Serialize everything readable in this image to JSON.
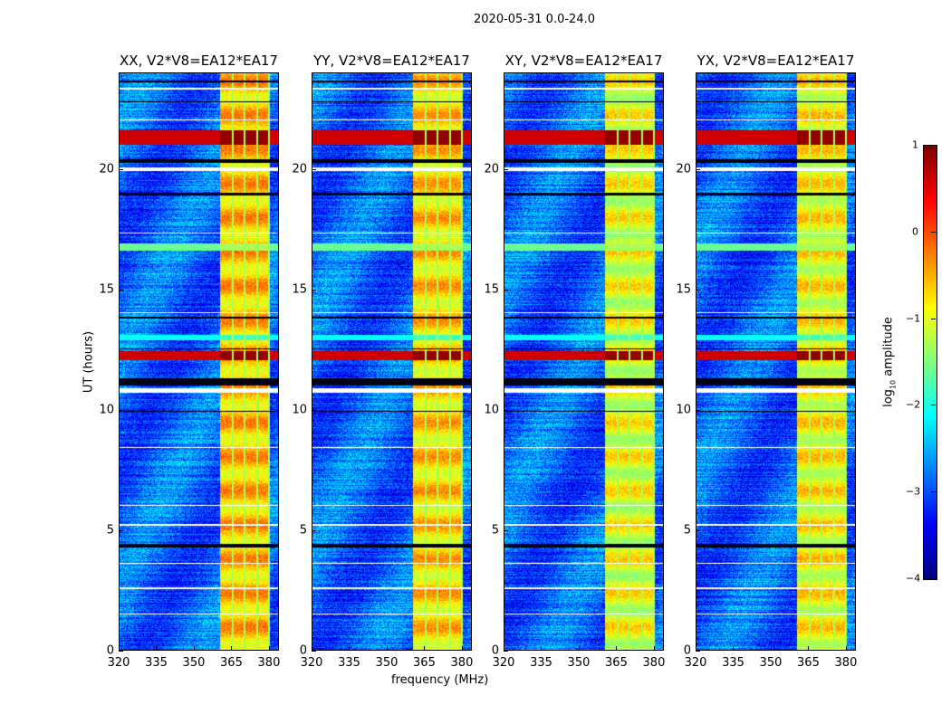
{
  "suptitle": "2020-05-31 0.0-24.0",
  "chart_data": {
    "type": "heatmap",
    "title": "2020-05-31 0.0-24.0",
    "xlabel": "frequency (MHz)",
    "ylabel": "UT (hours)",
    "xlim": [
      320,
      384
    ],
    "ylim": [
      0,
      24
    ],
    "xticks": [
      "320",
      "335",
      "350",
      "365",
      "380"
    ],
    "xtick_values": [
      320,
      335,
      350,
      365,
      380
    ],
    "yticks": [
      "0",
      "5",
      "10",
      "15",
      "20"
    ],
    "ytick_values": [
      0,
      5,
      10,
      15,
      20
    ],
    "colormap": "jet",
    "colorbar": {
      "label_prefix": "log",
      "label_sub": "10",
      "label_suffix": " amplitude",
      "range": [
        -4,
        1
      ],
      "ticks": [
        "1",
        "0",
        "−1",
        "−2",
        "−3",
        "−4"
      ],
      "tick_values": [
        1,
        0,
        -1,
        -2,
        -3,
        -4
      ]
    },
    "panels": [
      {
        "title": "XX, V2*V8=EA12*EA17",
        "band_offset": 0,
        "band_level": -0.6
      },
      {
        "title": "YY, V2*V8=EA12*EA17",
        "band_offset": 0,
        "band_level": -0.7
      },
      {
        "title": "XY, V2*V8=EA12*EA17",
        "band_offset": 0,
        "band_level": -1.0
      },
      {
        "title": "YX, V2*V8=EA12*EA17",
        "band_offset": 0,
        "band_level": -0.9
      }
    ],
    "background_level": -2.9,
    "rfi_band_mhz": [
      360.5,
      380
    ],
    "channel_edges_mhz": [
      365.5,
      370.3,
      375.2,
      380
    ],
    "strong_rows_hours": [
      [
        21.0,
        21.6,
        0.9
      ],
      [
        12.05,
        12.45,
        0.9
      ],
      [
        16.6,
        16.9,
        -1.3
      ],
      [
        12.9,
        13.1,
        -1.8
      ]
    ],
    "flagged_rows_hours": [
      [
        10.72,
        10.9
      ],
      [
        19.9,
        20.05
      ],
      [
        2.55,
        2.62
      ],
      [
        23.3,
        23.35
      ],
      [
        5.2,
        5.25
      ],
      [
        8.4,
        8.45
      ],
      [
        14.0,
        14.05
      ],
      [
        17.3,
        17.35
      ],
      [
        22.0,
        22.04
      ],
      [
        6.0,
        6.05
      ],
      [
        1.5,
        1.54
      ],
      [
        3.6,
        3.63
      ]
    ],
    "dark_rows_hours": [
      [
        23.6,
        23.65
      ],
      [
        22.75,
        22.8
      ],
      [
        20.25,
        20.4
      ],
      [
        18.9,
        19.0
      ],
      [
        11.0,
        11.3
      ],
      [
        4.3,
        4.45
      ],
      [
        12.5,
        12.55
      ],
      [
        13.8,
        13.85
      ],
      [
        9.9,
        9.95
      ]
    ]
  }
}
